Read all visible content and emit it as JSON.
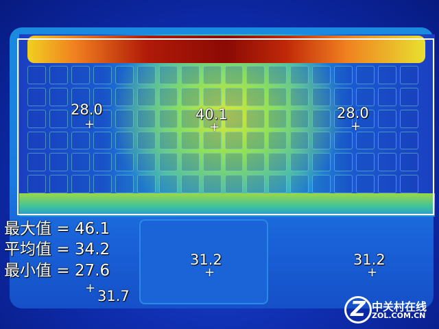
{
  "spots": [
    {
      "label": "28.0"
    },
    {
      "label": "40.1"
    },
    {
      "label": "28.0"
    },
    {
      "label": "31.2"
    },
    {
      "label": "31.2"
    },
    {
      "label": "31.7"
    }
  ],
  "stats": {
    "max": "最大值 = 46.1",
    "avg": "平均值 = 34.2",
    "min": "最小值 = 27.6"
  },
  "watermark": {
    "cn": "中关村在线",
    "en": "ZOL.COM.CN",
    "mark": "Z"
  },
  "palette": {
    "cold": "#0a1a8a",
    "cool": "#1a8ae0",
    "warm": "#d8e838",
    "hot": "#8a0a04"
  }
}
